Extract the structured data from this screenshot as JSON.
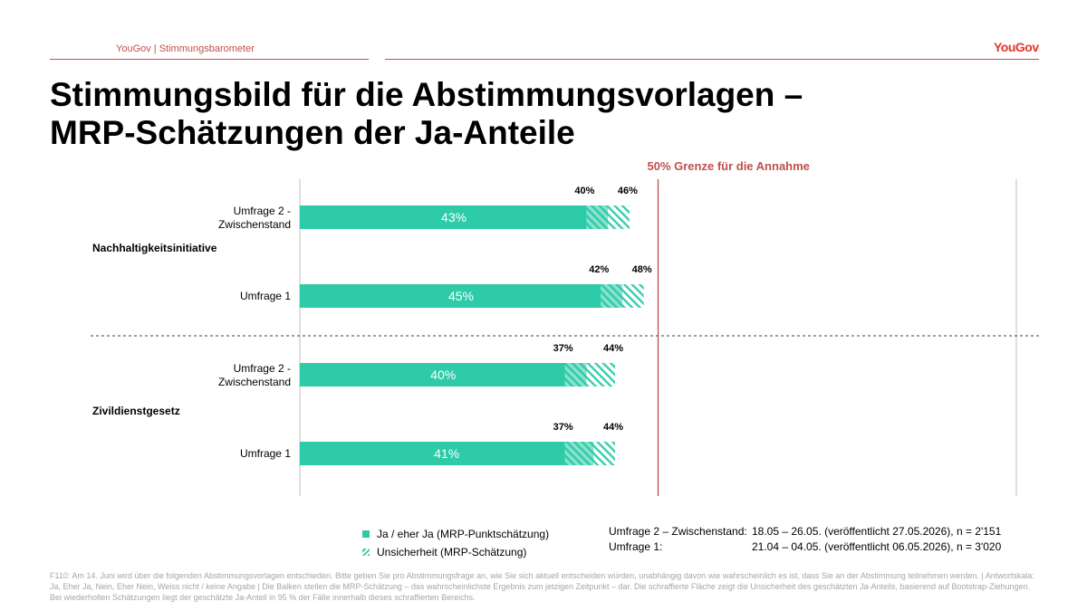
{
  "header": {
    "source_label": "YouGov | Stimmungsbarometer",
    "logo_text": "YouGov",
    "title_line1": "Stimmungsbild für die Abstimmungsvorlagen –",
    "title_line2": "MRP-Schätzungen der Ja-Anteile"
  },
  "chart_data": {
    "type": "bar",
    "orientation": "horizontal",
    "x_range": [
      0,
      100
    ],
    "threshold": {
      "value": 50,
      "label": "50% Grenze für die Annahme",
      "color": "#c0504d"
    },
    "groups": [
      {
        "name": "Nachhaltigkeitsinitiative",
        "bars": [
          {
            "label_line1": "Umfrage 2 -",
            "label_line2": "Zwischenstand",
            "value": 43,
            "value_label": "43%",
            "low": 40,
            "low_label": "40%",
            "high": 46,
            "high_label": "46%"
          },
          {
            "label_line1": "Umfrage 1",
            "label_line2": "",
            "value": 45,
            "value_label": "45%",
            "low": 42,
            "low_label": "42%",
            "high": 48,
            "high_label": "48%"
          }
        ]
      },
      {
        "name": "Zivildienstgesetz",
        "bars": [
          {
            "label_line1": "Umfrage 2 -",
            "label_line2": "Zwischenstand",
            "value": 40,
            "value_label": "40%",
            "low": 37,
            "low_label": "37%",
            "high": 44,
            "high_label": "44%"
          },
          {
            "label_line1": "Umfrage 1",
            "label_line2": "",
            "value": 41,
            "value_label": "41%",
            "low": 37,
            "low_label": "37%",
            "high": 44,
            "high_label": "44%"
          }
        ]
      }
    ],
    "colors": {
      "bar": "#2ecba8",
      "grid": "#bfbfbf",
      "separator": "#404040"
    }
  },
  "legend": {
    "solid_label": "Ja / eher Ja (MRP-Punktschätzung)",
    "hatch_label": "Unsicherheit (MRP-Schätzung)"
  },
  "survey_notes": [
    {
      "label": "Umfrage 2 – Zwischenstand:",
      "value": "18.05 – 26.05. (veröffentlicht 27.05.2026), n = 2'151"
    },
    {
      "label": "Umfrage 1:",
      "value": "21.04 – 04.05. (veröffentlicht 06.05.2026), n = 3'020"
    }
  ],
  "footnote": "F110: Am 14. Juni wird über die folgenden Abstimmungsvorlagen entschieden. Bitte geben Sie pro Abstimmungsfrage an, wie Sie sich aktuell entscheiden würden, unabhängig davon wie wahrscheinlich es ist, dass Sie an der Abstimmung teilnehmen werden. | Antwortskala: Ja, Eher Ja, Nein, Eher Nein, Weiss nicht / keine Angabe | Die Balken stellen die MRP-Schätzung – das wahrscheinlichste Ergebnis zum jetzigen Zeitpunkt – dar. Die schraffierte Fläche zeigt die Unsicherheit des geschätzten Ja-Anteils, basierend auf Bootstrap-Ziehungen. Bei wiederholten Schätzungen liegt der geschätzte Ja-Anteil in 95 % der Fälle innerhalb dieses schraffierten Bereichs."
}
